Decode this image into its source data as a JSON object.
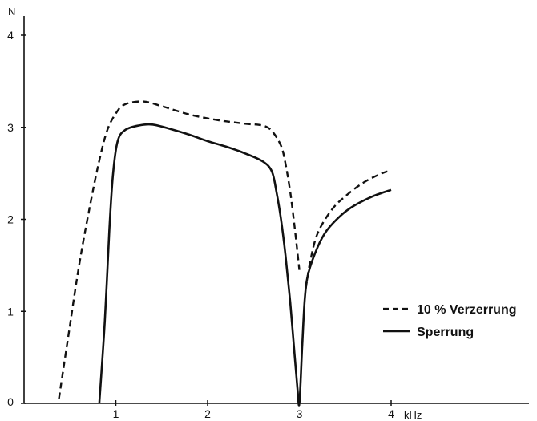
{
  "chart_data": {
    "type": "line",
    "title": "",
    "xlabel": "kHz",
    "ylabel": "N",
    "xlim": [
      0,
      4.6
    ],
    "ylim": [
      0,
      4
    ],
    "x_ticks": [
      1,
      2,
      3,
      4
    ],
    "y_ticks": [
      0,
      1,
      2,
      3,
      4
    ],
    "x_tick_labels": [
      "1",
      "2",
      "3",
      "4"
    ],
    "y_tick_labels": [
      "0",
      "1",
      "2",
      "3",
      "4"
    ],
    "grid": false,
    "legend_position": "right",
    "series": [
      {
        "name": "10 % Verzerrung",
        "style": "dashed",
        "x": [
          0.38,
          0.5,
          0.6,
          0.7,
          0.8,
          0.9,
          1.0,
          1.1,
          1.3,
          1.5,
          1.8,
          2.1,
          2.4,
          2.6,
          2.7,
          2.8,
          2.85,
          2.9,
          2.95,
          3.0
        ],
        "y": [
          0.05,
          0.85,
          1.5,
          2.05,
          2.55,
          2.95,
          3.15,
          3.25,
          3.28,
          3.23,
          3.14,
          3.08,
          3.04,
          3.02,
          2.96,
          2.8,
          2.6,
          2.3,
          1.9,
          1.45
        ]
      },
      {
        "name": "10 % Verzerrung",
        "style": "dashed",
        "x": [
          3.07,
          3.12,
          3.2,
          3.35,
          3.5,
          3.7,
          3.9,
          4.0
        ],
        "y": [
          1.25,
          1.55,
          1.85,
          2.1,
          2.25,
          2.4,
          2.5,
          2.53
        ]
      },
      {
        "name": "Sperrung",
        "style": "solid",
        "x": [
          0.82,
          0.88,
          0.93,
          0.97,
          1.02,
          1.1,
          1.25,
          1.4,
          1.6,
          1.8,
          2.0,
          2.2,
          2.4,
          2.6,
          2.7,
          2.75,
          2.8,
          2.85,
          2.9,
          2.95,
          2.98,
          3.0,
          3.03,
          3.06,
          3.1,
          3.2,
          3.3,
          3.45,
          3.6,
          3.8,
          4.0
        ],
        "y": [
          0.0,
          0.9,
          1.9,
          2.5,
          2.85,
          2.97,
          3.02,
          3.03,
          2.98,
          2.92,
          2.85,
          2.79,
          2.72,
          2.63,
          2.52,
          2.3,
          2.0,
          1.6,
          1.1,
          0.5,
          0.15,
          0.0,
          0.6,
          1.15,
          1.42,
          1.7,
          1.88,
          2.04,
          2.15,
          2.25,
          2.32
        ]
      }
    ],
    "legend": [
      {
        "label": "10 % Verzerrung",
        "style": "dashed"
      },
      {
        "label": "Sperrung",
        "style": "solid"
      }
    ]
  }
}
